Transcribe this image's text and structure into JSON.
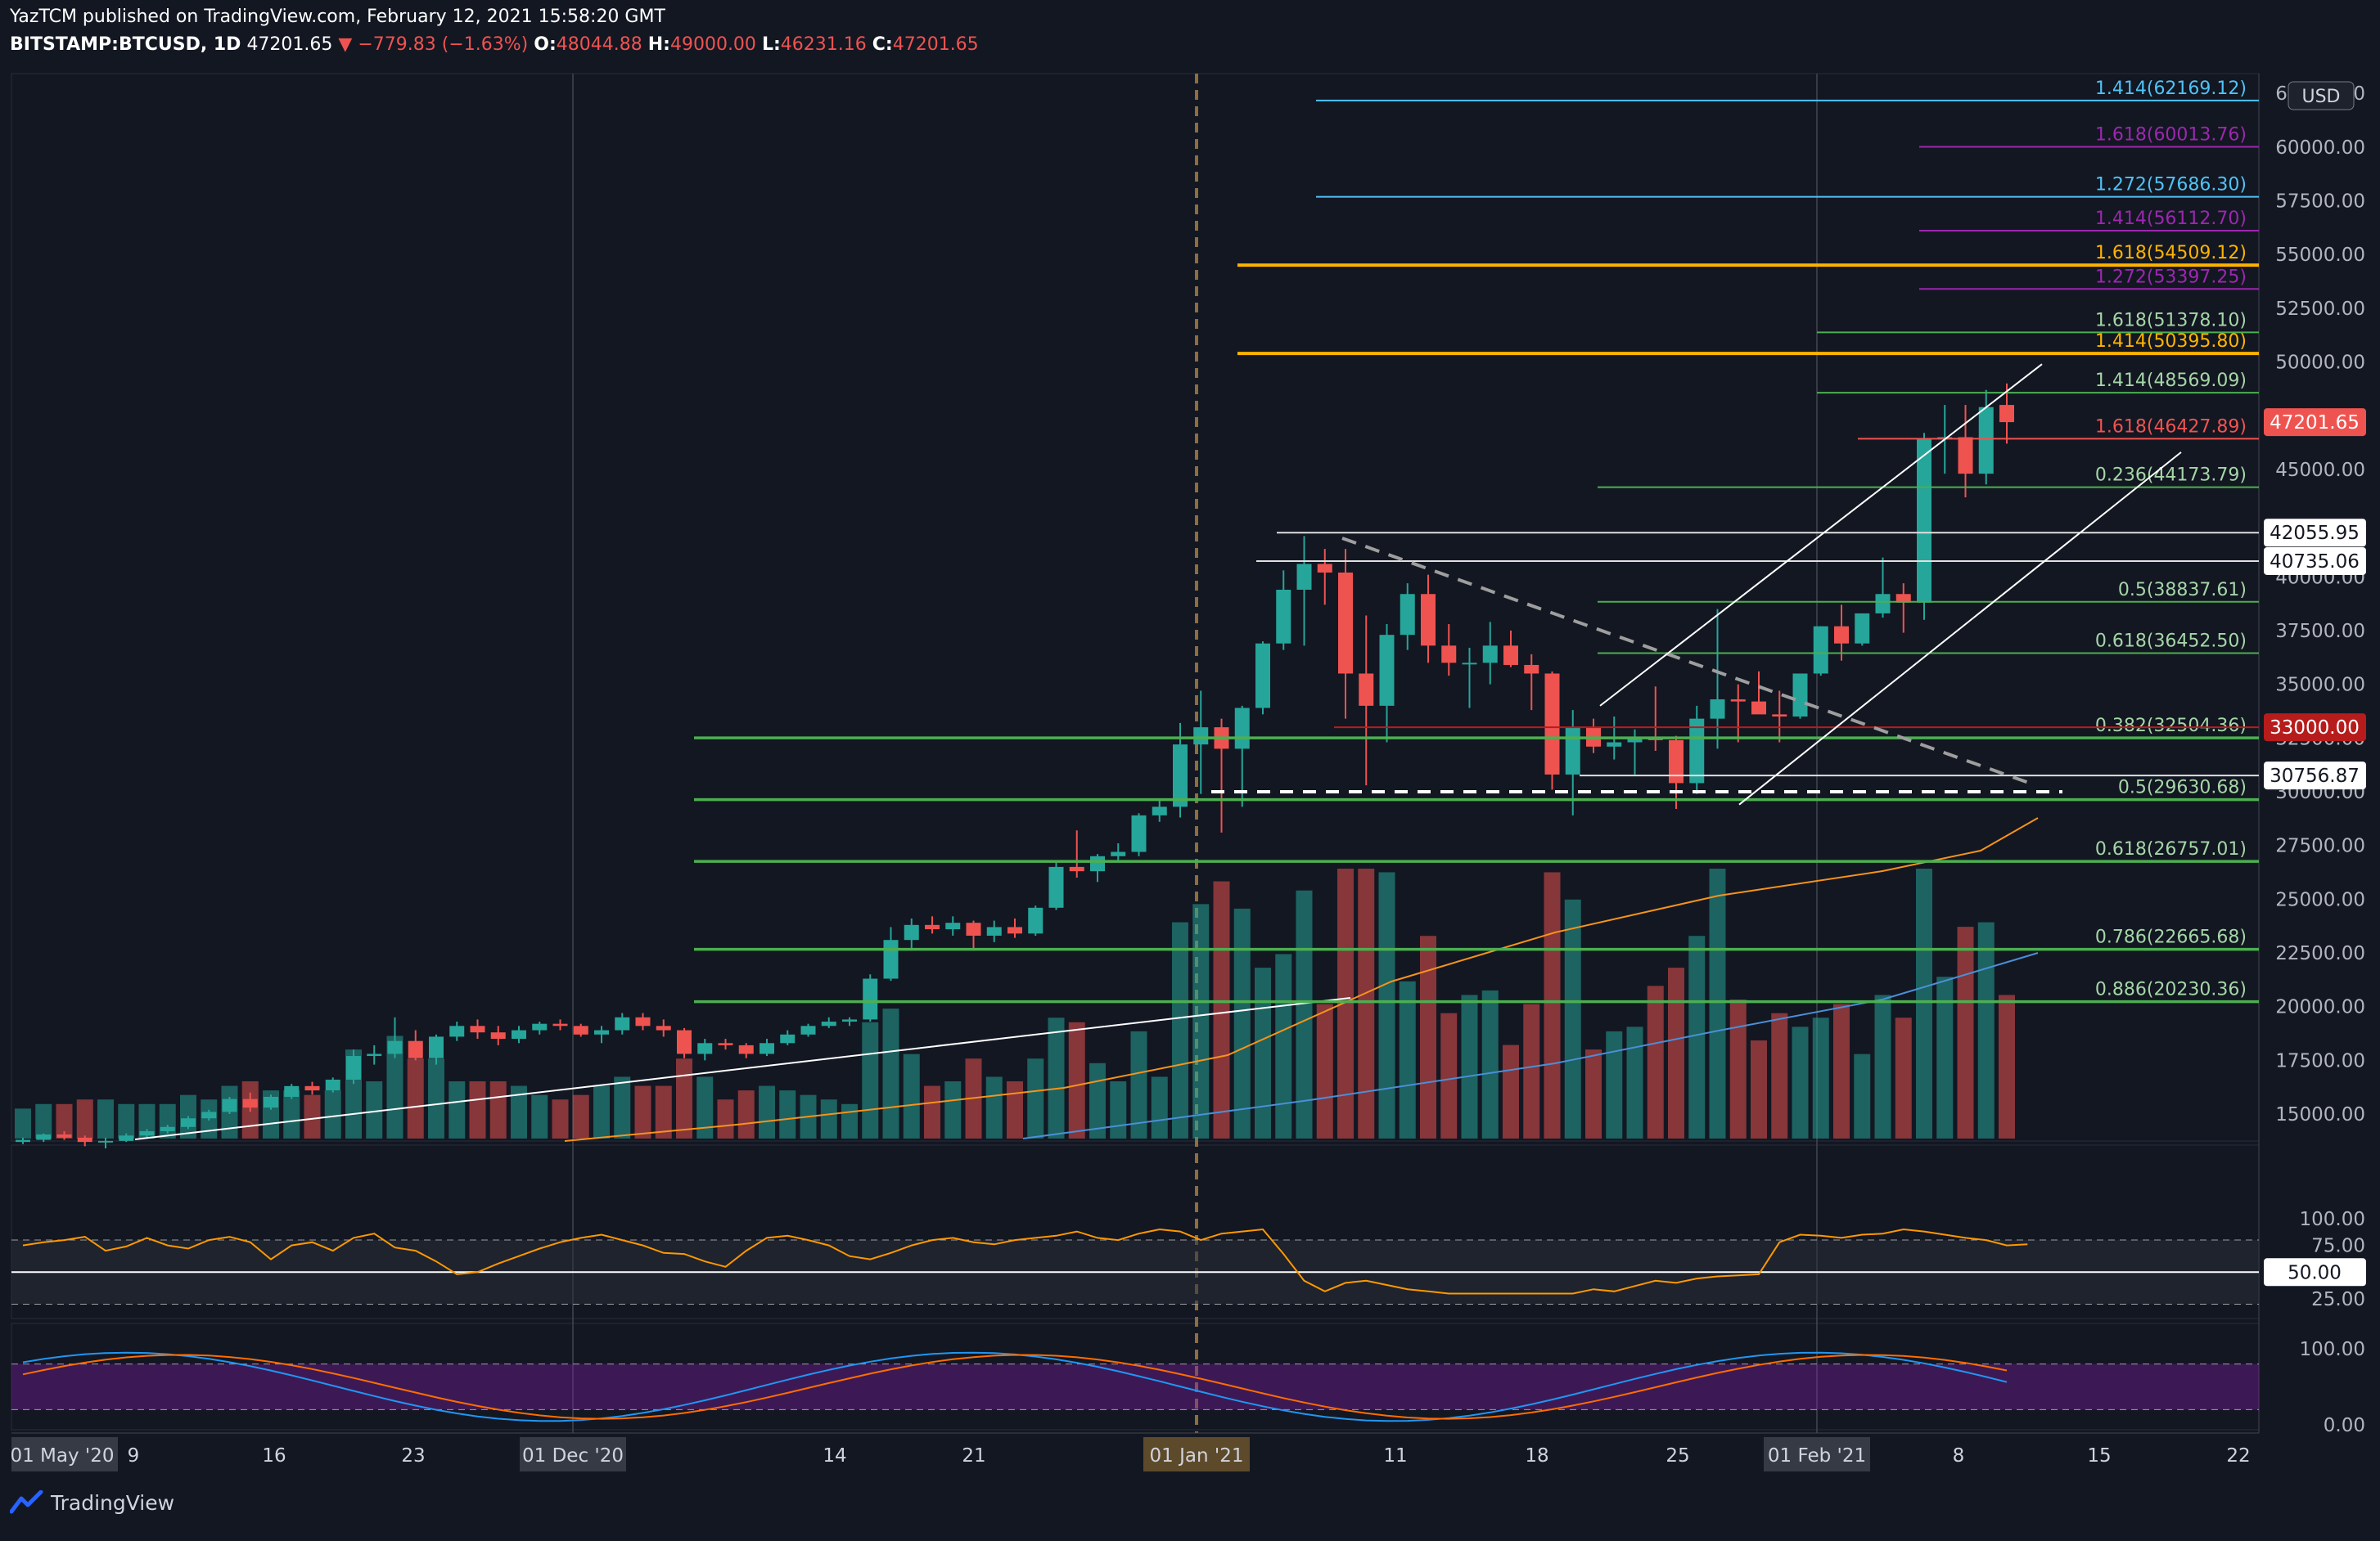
{
  "header": {
    "line1": "YazTCM published on TradingView.com, February 12, 2021 15:58:20 GMT",
    "symbol": "BITSTAMP:BTCUSD, 1D",
    "last": "47201.65",
    "change": "−779.83 (−1.63%)",
    "ohlc_o": "48044.88",
    "ohlc_h": "49000.00",
    "ohlc_l": "46231.16",
    "ohlc_c": "47201.65"
  },
  "footer": {
    "brand": "TradingView"
  },
  "currency": "USD",
  "colors": {
    "bg": "#131722",
    "up": "#26a69a",
    "down": "#ef5350",
    "grid": "#2a2e39",
    "fib_green": "#4caf50",
    "fib_cyan": "#4fc3f7",
    "fib_purple": "#9c27b0",
    "fib_orange": "#ffb300",
    "rsi": "#ff9800",
    "ma_orange": "#f7931a",
    "ma_blue": "#2962ff"
  },
  "chart_data": {
    "type": "candlestick",
    "price_axis": {
      "ticks": [
        "62500.00",
        "60000.00",
        "57500.00",
        "55000.00",
        "52500.00",
        "50000.00",
        "45000.00",
        "40000.00",
        "37500.00",
        "35000.00",
        "32500.00",
        "30000.00",
        "27500.00",
        "25000.00",
        "22500.00",
        "20000.00",
        "17500.00",
        "15000.00"
      ],
      "ylim": [
        14000,
        63000
      ]
    },
    "time_axis": [
      "9",
      "16",
      "23",
      "01 Dec '20",
      "14",
      "21",
      "2021",
      "11",
      "18",
      "25",
      "01 Feb '21",
      "8",
      "15",
      "22"
    ],
    "time_highlights": [
      "01 May '20",
      "01 Dec '20",
      "01 Jan '21",
      "01 Feb '21"
    ],
    "fib_levels": [
      {
        "label": "1.414",
        "value": "62169.12",
        "color": "cyan"
      },
      {
        "label": "1.618",
        "value": "60013.76",
        "color": "purple"
      },
      {
        "label": "1.272",
        "value": "57686.30",
        "color": "cyan"
      },
      {
        "label": "1.414",
        "value": "56112.70",
        "color": "purple"
      },
      {
        "label": "1.618",
        "value": "54509.12",
        "color": "orange"
      },
      {
        "label": "1.272",
        "value": "53397.25",
        "color": "purple"
      },
      {
        "label": "1.618",
        "value": "51378.10",
        "color": "green"
      },
      {
        "label": "1.414",
        "value": "50395.80",
        "color": "orange"
      },
      {
        "label": "1.414",
        "value": "48569.09",
        "color": "green"
      },
      {
        "label": "1.618",
        "value": "46427.89",
        "color": "red"
      },
      {
        "label": "0.236",
        "value": "44173.79",
        "color": "green"
      },
      {
        "label": "0.5",
        "value": "38837.61",
        "color": "green"
      },
      {
        "label": "0.618",
        "value": "36452.50",
        "color": "green"
      },
      {
        "label": "0.382",
        "value": "32504.36",
        "color": "green"
      },
      {
        "label": "0.5",
        "value": "29630.68",
        "color": "green"
      },
      {
        "label": "0.618",
        "value": "26757.01",
        "color": "green"
      },
      {
        "label": "0.786",
        "value": "22665.68",
        "color": "green"
      },
      {
        "label": "0.886",
        "value": "20230.36",
        "color": "green"
      }
    ],
    "level_tags": [
      {
        "value": "47201.65",
        "style": "last"
      },
      {
        "value": "42055.95",
        "style": "white"
      },
      {
        "value": "40735.06",
        "style": "white"
      },
      {
        "value": "33000.00",
        "style": "red"
      },
      {
        "value": "30756.87",
        "style": "white"
      }
    ],
    "candles": [
      [
        13700,
        13900,
        13600,
        13800
      ],
      [
        13800,
        14100,
        13700,
        14050
      ],
      [
        14050,
        14200,
        13800,
        13900
      ],
      [
        13900,
        14000,
        13500,
        13700
      ],
      [
        13700,
        13900,
        13400,
        13750
      ],
      [
        13750,
        14100,
        13700,
        14000
      ],
      [
        14000,
        14300,
        13900,
        14200
      ],
      [
        14200,
        14500,
        14100,
        14400
      ],
      [
        14400,
        14900,
        14300,
        14800
      ],
      [
        14800,
        15200,
        14700,
        15100
      ],
      [
        15100,
        15800,
        15000,
        15700
      ],
      [
        15700,
        16000,
        15100,
        15300
      ],
      [
        15300,
        15900,
        15200,
        15800
      ],
      [
        15800,
        16400,
        15700,
        16300
      ],
      [
        16300,
        16500,
        15900,
        16100
      ],
      [
        16100,
        16700,
        16000,
        16600
      ],
      [
        16600,
        18000,
        16400,
        17700
      ],
      [
        17700,
        18200,
        17300,
        17800
      ],
      [
        17800,
        19500,
        17600,
        18400
      ],
      [
        18400,
        18900,
        17500,
        17600
      ],
      [
        17600,
        18700,
        17300,
        18600
      ],
      [
        18600,
        19300,
        18400,
        19100
      ],
      [
        19100,
        19400,
        18500,
        18800
      ],
      [
        18800,
        19100,
        18200,
        18500
      ],
      [
        18500,
        19100,
        18300,
        18900
      ],
      [
        18900,
        19300,
        18700,
        19200
      ],
      [
        19200,
        19400,
        18900,
        19100
      ],
      [
        19100,
        19200,
        18600,
        18700
      ],
      [
        18700,
        19100,
        18300,
        18900
      ],
      [
        18900,
        19700,
        18700,
        19500
      ],
      [
        19500,
        19700,
        18900,
        19100
      ],
      [
        19100,
        19400,
        18600,
        18900
      ],
      [
        18900,
        19000,
        17600,
        17800
      ],
      [
        17800,
        18500,
        17500,
        18300
      ],
      [
        18300,
        18500,
        18000,
        18200
      ],
      [
        18200,
        18300,
        17600,
        17800
      ],
      [
        17800,
        18500,
        17700,
        18300
      ],
      [
        18300,
        18900,
        18200,
        18700
      ],
      [
        18700,
        19200,
        18600,
        19100
      ],
      [
        19100,
        19500,
        19000,
        19300
      ],
      [
        19300,
        19500,
        19100,
        19400
      ],
      [
        19400,
        21500,
        19300,
        21300
      ],
      [
        21300,
        23700,
        21200,
        23100
      ],
      [
        23100,
        24100,
        22600,
        23800
      ],
      [
        23800,
        24200,
        23400,
        23600
      ],
      [
        23600,
        24200,
        23300,
        23900
      ],
      [
        23900,
        24000,
        22600,
        23300
      ],
      [
        23300,
        24000,
        23000,
        23700
      ],
      [
        23700,
        24100,
        23200,
        23400
      ],
      [
        23400,
        24700,
        23300,
        24600
      ],
      [
        24600,
        26800,
        24500,
        26500
      ],
      [
        26500,
        28200,
        26000,
        26300
      ],
      [
        26300,
        27100,
        25800,
        27000
      ],
      [
        27000,
        27600,
        26700,
        27200
      ],
      [
        27200,
        29000,
        27000,
        28900
      ],
      [
        28900,
        29600,
        28600,
        29300
      ],
      [
        29300,
        33200,
        28800,
        32200
      ],
      [
        32200,
        34700,
        29900,
        33000
      ],
      [
        33000,
        33400,
        28100,
        32000
      ],
      [
        32000,
        34000,
        29300,
        33900
      ],
      [
        33900,
        37000,
        33600,
        36900
      ],
      [
        36900,
        40300,
        36600,
        39400
      ],
      [
        39400,
        41900,
        36800,
        40600
      ],
      [
        40600,
        41300,
        38700,
        40200
      ],
      [
        40200,
        41300,
        33400,
        35500
      ],
      [
        35500,
        38200,
        30300,
        34000
      ],
      [
        34000,
        37800,
        32300,
        37300
      ],
      [
        37300,
        39700,
        36600,
        39200
      ],
      [
        39200,
        40100,
        36000,
        36800
      ],
      [
        36800,
        37800,
        35400,
        36000
      ],
      [
        36000,
        36700,
        33900,
        36000
      ],
      [
        36000,
        37900,
        35000,
        36800
      ],
      [
        36800,
        37500,
        35800,
        35900
      ],
      [
        35900,
        36400,
        33800,
        35500
      ],
      [
        35500,
        35600,
        30100,
        30800
      ],
      [
        30800,
        33800,
        28900,
        33000
      ],
      [
        33000,
        33400,
        31800,
        32100
      ],
      [
        32100,
        33500,
        31500,
        32300
      ],
      [
        32300,
        32900,
        30800,
        32500
      ],
      [
        32500,
        34900,
        31900,
        32400
      ],
      [
        32400,
        32600,
        29200,
        30400
      ],
      [
        30400,
        34000,
        29900,
        33400
      ],
      [
        33400,
        38500,
        32000,
        34300
      ],
      [
        34300,
        35000,
        32300,
        34200
      ],
      [
        34200,
        35600,
        33800,
        33600
      ],
      [
        33600,
        34700,
        32300,
        33500
      ],
      [
        33500,
        35500,
        33400,
        35500
      ],
      [
        35500,
        37700,
        35400,
        37700
      ],
      [
        37700,
        38700,
        36100,
        36900
      ],
      [
        36900,
        38300,
        36800,
        38300
      ],
      [
        38300,
        40900,
        38100,
        39200
      ],
      [
        39200,
        39700,
        37400,
        38800
      ],
      [
        38800,
        46700,
        38000,
        46400
      ],
      [
        46400,
        48000,
        44800,
        46500
      ],
      [
        46500,
        48000,
        43700,
        44800
      ],
      [
        44800,
        48700,
        44300,
        47900
      ],
      [
        48000,
        49000,
        46200,
        47200
      ]
    ],
    "rsi": {
      "ticks": [
        "100.00",
        "75.00",
        "50.00",
        "25.00"
      ],
      "label": "50.00",
      "range": [
        0,
        100
      ]
    },
    "stoch": {
      "ticks": [
        "100.00",
        "0.00"
      ],
      "range": [
        0,
        100
      ]
    }
  }
}
